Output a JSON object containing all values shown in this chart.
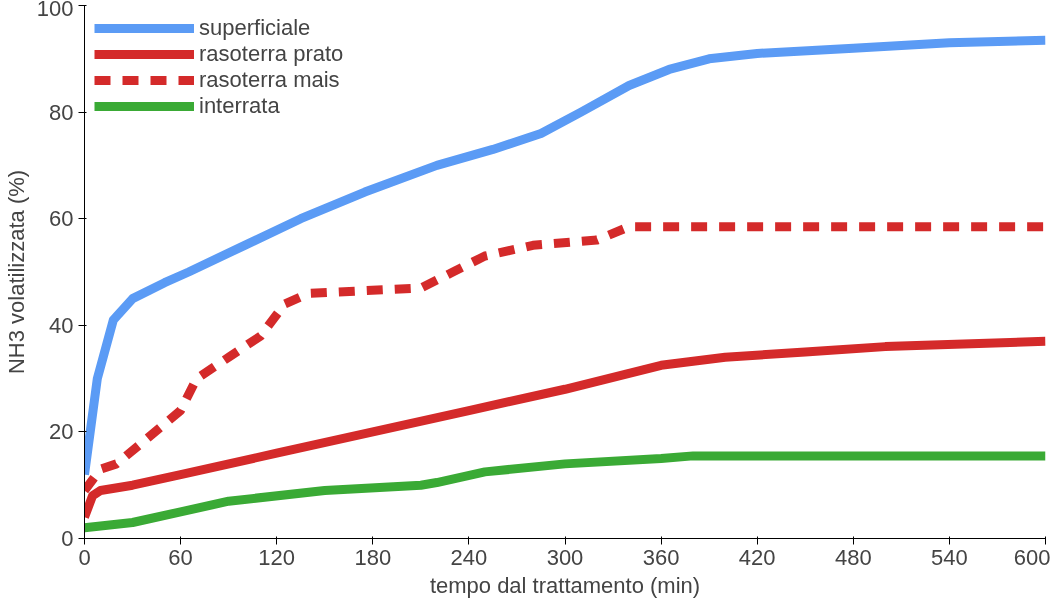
{
  "chart_data": {
    "type": "line",
    "xlabel": "tempo dal trattamento (min)",
    "ylabel": "NH3 volatilizzata (%)",
    "xlim": [
      0,
      600
    ],
    "xticks": [
      0,
      60,
      120,
      180,
      240,
      300,
      360,
      420,
      480,
      540,
      600
    ],
    "ylim": [
      0,
      100
    ],
    "yticks": [
      0,
      20,
      40,
      60,
      80,
      100
    ],
    "grid": false,
    "legend": "top left",
    "series": [
      {
        "name": "superficiale",
        "color": "#5b9bf5",
        "line_style": "solid",
        "x": [
          0,
          8,
          18,
          30,
          50,
          65,
          100,
          135,
          175,
          220,
          255,
          285,
          310,
          340,
          365,
          390,
          420,
          480,
          540,
          600
        ],
        "values": [
          12,
          30,
          41,
          45,
          48,
          50,
          55,
          60,
          65,
          70,
          73,
          76,
          80,
          85,
          88,
          90,
          91,
          92,
          93,
          93.5
        ]
      },
      {
        "name": "rasoterra prato",
        "color": "#d42a2a",
        "line_style": "solid",
        "x": [
          0,
          5,
          10,
          30,
          60,
          120,
          180,
          240,
          300,
          360,
          400,
          450,
          500,
          600
        ],
        "values": [
          4,
          8,
          9,
          10,
          12,
          16,
          20,
          24,
          28,
          32.5,
          34,
          35,
          36,
          37
        ]
      },
      {
        "name": "rasoterra mais",
        "color": "#d42a2a",
        "line_style": "dashed",
        "x": [
          0,
          10,
          20,
          40,
          60,
          70,
          90,
          110,
          125,
          140,
          210,
          230,
          250,
          280,
          320,
          340,
          360,
          600
        ],
        "values": [
          9,
          13,
          14,
          19,
          24,
          30,
          34,
          38,
          44,
          46,
          47,
          50,
          53,
          55,
          56,
          58.5,
          58.5,
          58.5
        ]
      },
      {
        "name": "interrata",
        "color": "#3aaa35",
        "line_style": "solid",
        "x": [
          0,
          30,
          60,
          90,
          150,
          210,
          220,
          250,
          300,
          360,
          380,
          600
        ],
        "values": [
          2,
          3,
          5,
          7,
          9,
          10,
          10.5,
          12.5,
          14,
          15,
          15.5,
          15.5
        ]
      }
    ]
  }
}
